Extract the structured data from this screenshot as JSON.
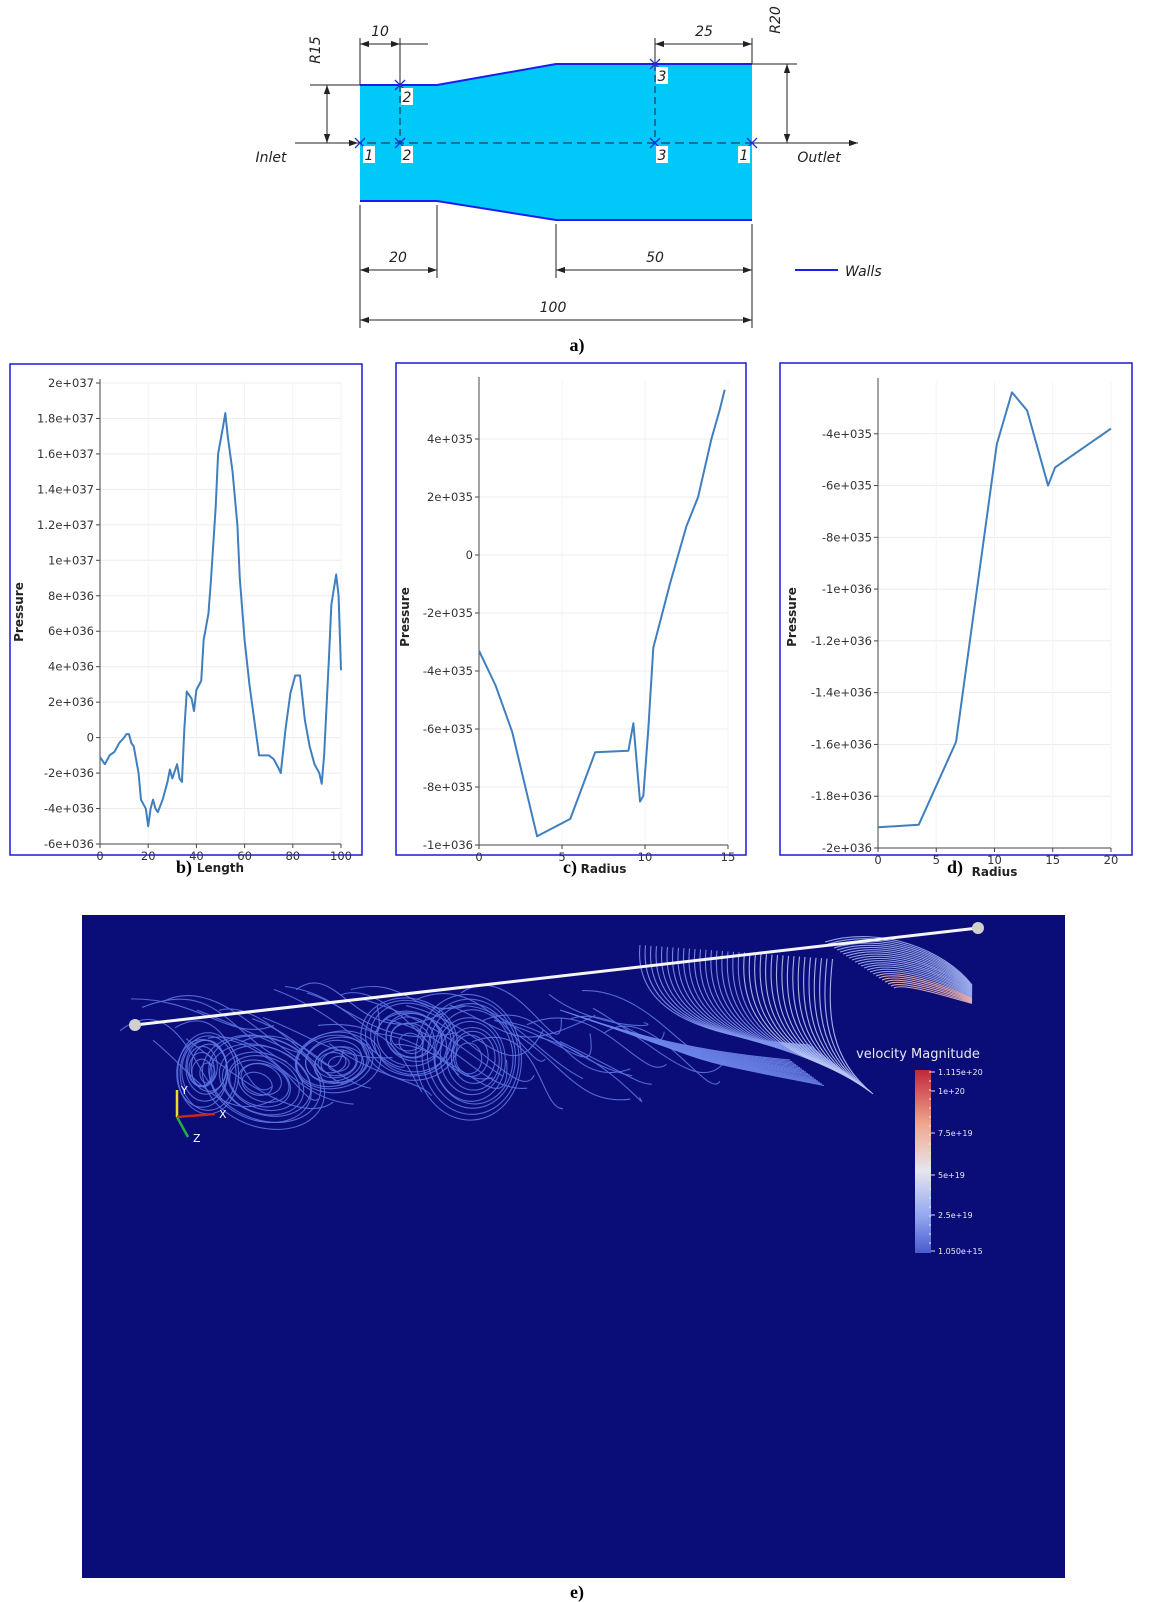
{
  "diagram": {
    "dimensions": {
      "r15": "R15",
      "r20": "R20",
      "d10": "10",
      "d25": "25",
      "d20": "20",
      "d50": "50",
      "d100": "100"
    },
    "inlet": "Inlet",
    "outlet": "Outlet",
    "points": [
      "1",
      "2",
      "2",
      "3",
      "3",
      "1"
    ],
    "legend": "Walls"
  },
  "captions": [
    "a)",
    "b)",
    "c)",
    "d)",
    "e)"
  ],
  "chart_data": [
    {
      "type": "line",
      "x_label": "Length",
      "y_label": "Pressure",
      "color": "#3f7fbf",
      "grid": true,
      "x": [
        0,
        2,
        4,
        6,
        8,
        10,
        11,
        12,
        13,
        14,
        16,
        17,
        19,
        20,
        21,
        22,
        23,
        24,
        26,
        28,
        29,
        30,
        32,
        33,
        34,
        35,
        36,
        38,
        39,
        40,
        42,
        43,
        45,
        46,
        48,
        49,
        51,
        52,
        53,
        55,
        57,
        58,
        60,
        62,
        64,
        66,
        70,
        72,
        74,
        75,
        77,
        79,
        81,
        83,
        85,
        87,
        89,
        91,
        92,
        93,
        95,
        96,
        98,
        99,
        100
      ],
      "values": [
        -1.1e+36,
        -1.5e+36,
        -1e+36,
        -8e+35,
        -3e+35,
        0,
        2e+35,
        2e+35,
        -3e+35,
        -5e+35,
        -2e+36,
        -3.5e+36,
        -4e+36,
        -5e+36,
        -4e+36,
        -3.5e+36,
        -4e+36,
        -4.2e+36,
        -3.5e+36,
        -2.5e+36,
        -1.8e+36,
        -2.3e+36,
        -1.5e+36,
        -2.3e+36,
        -2.5e+36,
        5e+35,
        2.6e+36,
        2.2e+36,
        1.5e+36,
        2.7e+36,
        3.2e+36,
        5.5e+36,
        7e+36,
        8.8e+36,
        1.3e+37,
        1.6e+37,
        1.75e+37,
        1.83e+37,
        1.7e+37,
        1.5e+37,
        1.2e+37,
        9e+36,
        5.5e+36,
        3e+36,
        1e+36,
        -1e+36,
        -1e+36,
        -1.2e+36,
        -1.7e+36,
        -2e+36,
        5e+35,
        2.5e+36,
        3.5e+36,
        3.5e+36,
        1e+36,
        -5e+35,
        -1.5e+36,
        -2e+36,
        -2.6e+36,
        -1e+36,
        4.5e+36,
        7.5e+36,
        9.2e+36,
        8e+36,
        3.8e+36
      ],
      "xlim": [
        0,
        100
      ],
      "xticks": [
        0,
        20,
        40,
        60,
        80,
        100
      ],
      "ylim": [
        -6e+36,
        2e+37
      ],
      "yticks": [
        {
          "value": 2e+37,
          "label": "2e+037"
        },
        {
          "value": 1.8e+37,
          "label": "1.8e+037"
        },
        {
          "value": 1.6e+37,
          "label": "1.6e+037"
        },
        {
          "value": 1.4e+37,
          "label": "1.4e+037"
        },
        {
          "value": 1.2e+37,
          "label": "1.2e+037"
        },
        {
          "value": 1e+37,
          "label": "1e+037"
        },
        {
          "value": 8e+36,
          "label": "8e+036"
        },
        {
          "value": 6e+36,
          "label": "6e+036"
        },
        {
          "value": 4e+36,
          "label": "4e+036"
        },
        {
          "value": 2e+36,
          "label": "2e+036"
        },
        0,
        {
          "value": -2e+36,
          "label": "-2e+036"
        },
        {
          "value": -4e+36,
          "label": "-4e+036"
        },
        {
          "value": -6e+36,
          "label": "-6e+036"
        }
      ]
    },
    {
      "type": "line",
      "x_label": "Radius",
      "y_label": "Pressure",
      "color": "#3f7fbf",
      "grid": true,
      "x": [
        0,
        1,
        1.5,
        2,
        3.5,
        5.5,
        7,
        9,
        9.3,
        9.7,
        9.9,
        10.2,
        10.5,
        11.5,
        12.5,
        13.2,
        14,
        14.5,
        14.8
      ],
      "values": [
        -3.3e+35,
        -4.5e+35,
        -5.3e+35,
        -6.1e+35,
        -9.7e+35,
        -9.1e+35,
        -6.8e+35,
        -6.75e+35,
        -5.8e+35,
        -8.5e+35,
        -8.3e+35,
        -6e+35,
        -3.2e+35,
        -1e+35,
        1e+35,
        2e+35,
        4e+35,
        5e+35,
        5.7e+35
      ],
      "xlim": [
        0,
        15
      ],
      "xticks": [
        0,
        5,
        10,
        15
      ],
      "ylim": [
        -1e+36,
        6e+35
      ],
      "yticks": [
        {
          "value": 4e+35,
          "label": "4e+035"
        },
        {
          "value": 2e+35,
          "label": "2e+035"
        },
        0,
        {
          "value": -2e+35,
          "label": "-2e+035"
        },
        {
          "value": -4e+35,
          "label": "-4e+035"
        },
        {
          "value": -6e+35,
          "label": "-6e+035"
        },
        {
          "value": -8e+35,
          "label": "-8e+035"
        },
        {
          "value": -1e+36,
          "label": "-1e+036"
        }
      ]
    },
    {
      "type": "line",
      "x_label": "Radius",
      "y_label": "Pressure",
      "color": "#3f7fbf",
      "grid": true,
      "x": [
        0,
        3.5,
        6.7,
        10.2,
        11.5,
        12.8,
        14.6,
        15.2,
        20
      ],
      "values": [
        -1.92e+36,
        -1.91e+36,
        -1.59e+36,
        -4.4e+35,
        -2.4e+35,
        -3.1e+35,
        -6e+35,
        -5.3e+35,
        -3.8e+35
      ],
      "xlim": [
        0,
        20
      ],
      "xticks": [
        0,
        5,
        10,
        15,
        20
      ],
      "ylim": [
        -2e+36,
        -2e+35
      ],
      "yticks": [
        {
          "value": -4e+35,
          "label": "-4e+035"
        },
        {
          "value": -6e+35,
          "label": "-6e+035"
        },
        {
          "value": -8e+35,
          "label": "-8e+035"
        },
        {
          "value": -1e+36,
          "label": "-1e+036"
        },
        {
          "value": -1.2e+36,
          "label": "-1.2e+036"
        },
        {
          "value": -1.4e+36,
          "label": "-1.4e+036"
        },
        {
          "value": -1.6e+36,
          "label": "-1.6e+036"
        },
        {
          "value": -1.8e+36,
          "label": "-1.8e+036"
        },
        {
          "value": -2e+36,
          "label": "-2e+036"
        }
      ]
    }
  ],
  "visualization": {
    "colorbar": {
      "title": "velocity Magnitude",
      "labels": [
        "1.115e+20",
        "1e+20",
        "7.5e+19",
        "5e+19",
        "2.5e+19",
        "1.050e+15"
      ]
    },
    "axes": [
      "Y",
      "X",
      "Z"
    ]
  }
}
